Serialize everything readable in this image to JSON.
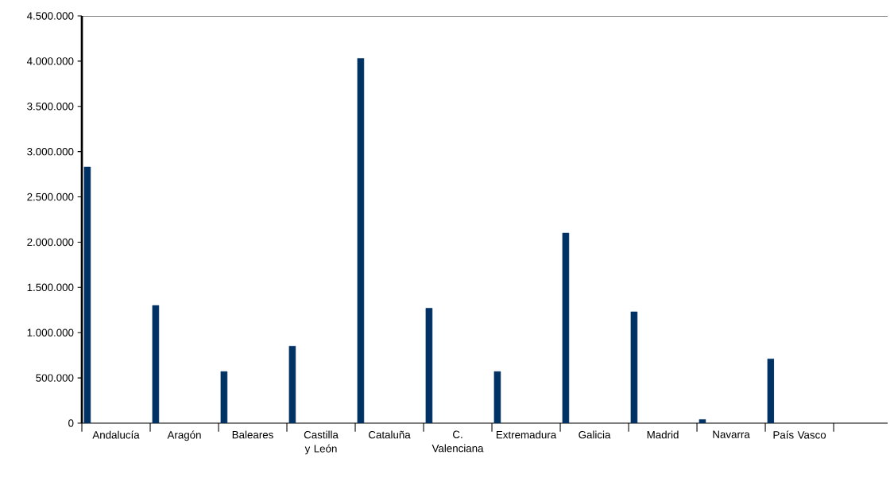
{
  "chart_data": {
    "type": "bar",
    "categories": [
      "Andalucía",
      "Aragón",
      "Baleares",
      "Castilla y León",
      "Cataluña",
      "C. Valenciana",
      "Extremadura",
      "Galicia",
      "Madrid",
      "Navarra",
      "País Vasco"
    ],
    "values": [
      2830000,
      1300000,
      570000,
      850000,
      4030000,
      1270000,
      570000,
      2100000,
      1230000,
      40000,
      710000
    ],
    "color": "#003264",
    "ylim": [
      0,
      4500000
    ],
    "yticks": [
      {
        "value": 0,
        "label": "0"
      },
      {
        "value": 500000,
        "label": "500.000"
      },
      {
        "value": 1000000,
        "label": "1.000.000"
      },
      {
        "value": 1500000,
        "label": "1.500.000"
      },
      {
        "value": 2000000,
        "label": "2.000.000"
      },
      {
        "value": 2500000,
        "label": "2.500.000"
      },
      {
        "value": 3000000,
        "label": "3.000.000"
      },
      {
        "value": 3500000,
        "label": "3.500.000"
      },
      {
        "value": 4000000,
        "label": "4.000.000"
      },
      {
        "value": 4500000,
        "label": "4.500.000"
      }
    ],
    "grid": false
  }
}
